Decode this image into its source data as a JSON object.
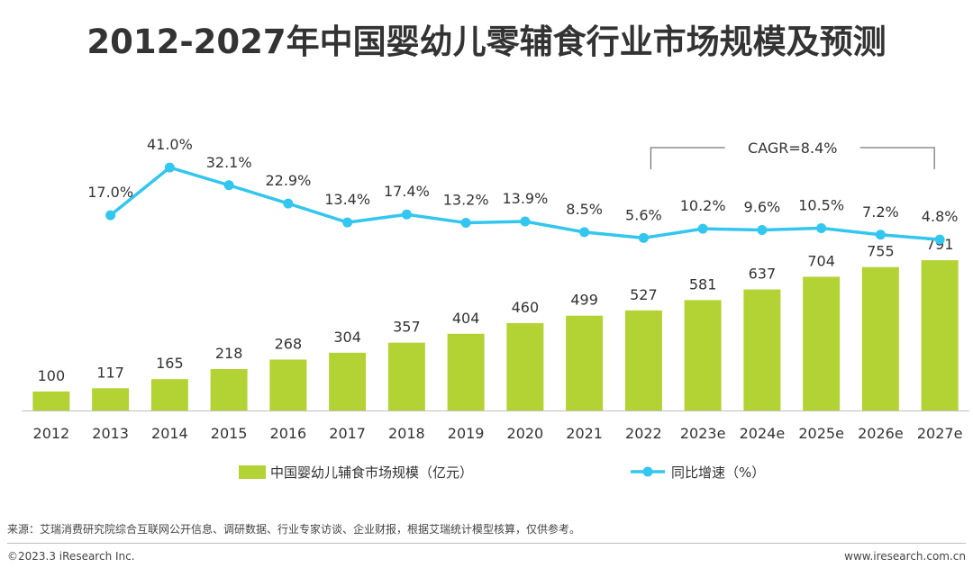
{
  "title": "2012-2027年中国婴幼儿零辅食行业市场规模及预测",
  "source": "来源：艾瑞消费研究院综合互联网公开信息、调研数据、行业专家访谈、企业财报，根据艾瑞统计模型核算，仅供参考。",
  "copyright": "©2023.3 iResearch Inc.",
  "website": "www.iresearch.com.cn",
  "colors": {
    "bar": "#b3d234",
    "line": "#33c6ee",
    "text": "#333333",
    "axis": "#bfbfbf"
  },
  "chart_data": {
    "type": "bar+line",
    "categories": [
      "2012",
      "2013",
      "2014",
      "2015",
      "2016",
      "2017",
      "2018",
      "2019",
      "2020",
      "2021",
      "2022",
      "2023e",
      "2024e",
      "2025e",
      "2026e",
      "2027e"
    ],
    "series": [
      {
        "name": "中国婴幼儿辅食市场规模（亿元）",
        "type": "bar",
        "values": [
          100,
          117,
          165,
          218,
          268,
          304,
          357,
          404,
          460,
          499,
          527,
          581,
          637,
          704,
          755,
          791
        ],
        "labels": [
          "100",
          "117",
          "165",
          "218",
          "268",
          "304",
          "357",
          "404",
          "460",
          "499",
          "527",
          "581",
          "637",
          "704",
          "755",
          "791"
        ]
      },
      {
        "name": "同比增速（%）",
        "type": "line",
        "values": [
          null,
          17.0,
          41.0,
          32.1,
          22.9,
          13.4,
          17.4,
          13.2,
          13.9,
          8.5,
          5.6,
          10.2,
          9.6,
          10.5,
          7.2,
          4.8
        ],
        "labels": [
          "",
          "17.0%",
          "41.0%",
          "32.1%",
          "22.9%",
          "13.4%",
          "17.4%",
          "13.2%",
          "13.9%",
          "8.5%",
          "5.6%",
          "10.2%",
          "9.6%",
          "10.5%",
          "7.2%",
          "4.8%"
        ]
      }
    ],
    "annotation": {
      "text": "CAGR=8.4%",
      "from": "2022",
      "to": "2027e"
    },
    "legend_position": "bottom"
  }
}
